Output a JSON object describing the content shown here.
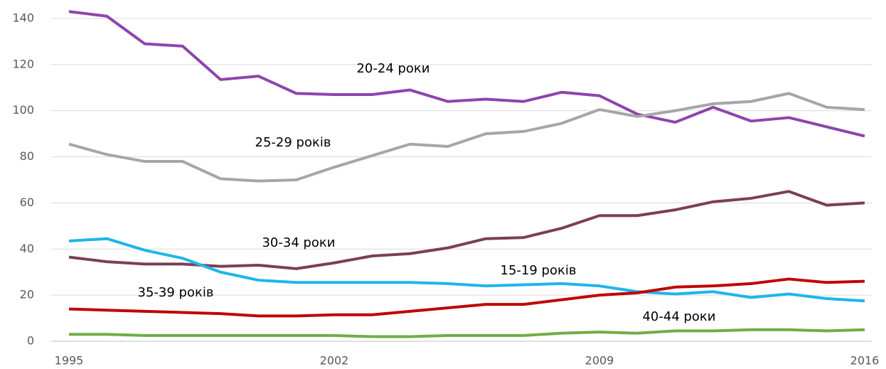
{
  "chart_data": {
    "type": "line",
    "x": [
      1995,
      1996,
      1997,
      1998,
      1999,
      2000,
      2001,
      2002,
      2003,
      2004,
      2005,
      2006,
      2007,
      2008,
      2009,
      2010,
      2011,
      2012,
      2013,
      2014,
      2015,
      2016
    ],
    "xlim": [
      1995,
      2016
    ],
    "xticks": [
      1995,
      2002,
      2009,
      2016
    ],
    "ylim": [
      0,
      140
    ],
    "yticks": [
      0,
      20,
      40,
      60,
      80,
      100,
      120,
      140
    ],
    "grid": true,
    "series": [
      {
        "name": "20-24 роки",
        "color": "#8e44ad",
        "values": [
          143,
          141,
          129,
          128,
          113.5,
          115,
          107.5,
          107,
          107,
          109,
          104,
          105,
          104,
          108,
          106.5,
          98.5,
          95,
          101.5,
          95.5,
          97,
          93,
          89
        ]
      },
      {
        "name": "25-29 років",
        "color": "#a6a6a6",
        "values": [
          85.5,
          81,
          78,
          78,
          70.5,
          69.5,
          70,
          75.5,
          80.5,
          85.5,
          84.5,
          90,
          91,
          94.5,
          100.5,
          97.5,
          100,
          103,
          104,
          107.5,
          101.5,
          100.5
        ]
      },
      {
        "name": "30-34 роки",
        "color": "#7b3f55",
        "values": [
          36.5,
          34.5,
          33.5,
          33.5,
          32.5,
          33,
          31.5,
          34,
          37,
          38,
          40.5,
          44.5,
          45,
          49,
          54.5,
          54.5,
          57,
          60.5,
          62,
          65,
          59,
          60
        ]
      },
      {
        "name": "15-19 років",
        "color": "#1fb5ea",
        "values": [
          43.5,
          44.5,
          39.5,
          36,
          30,
          26.5,
          25.5,
          25.5,
          25.5,
          25.5,
          25,
          24,
          24.5,
          25,
          24,
          21.5,
          20.5,
          21.5,
          19,
          20.5,
          18.5,
          17.5
        ]
      },
      {
        "name": "35-39 років",
        "color": "#c00000",
        "values": [
          14,
          13.5,
          13,
          12.5,
          12,
          11,
          11,
          11.5,
          11.5,
          13,
          14.5,
          16,
          16,
          18,
          20,
          21,
          23.5,
          24,
          25,
          27,
          25.5,
          26
        ]
      },
      {
        "name": "40-44 роки",
        "color": "#70ad47",
        "values": [
          3,
          3,
          2.5,
          2.5,
          2.5,
          2.5,
          2.5,
          2.5,
          2,
          2,
          2.5,
          2.5,
          2.5,
          3.5,
          4,
          3.5,
          4.5,
          4.5,
          5,
          5,
          4.5,
          5
        ]
      }
    ]
  }
}
